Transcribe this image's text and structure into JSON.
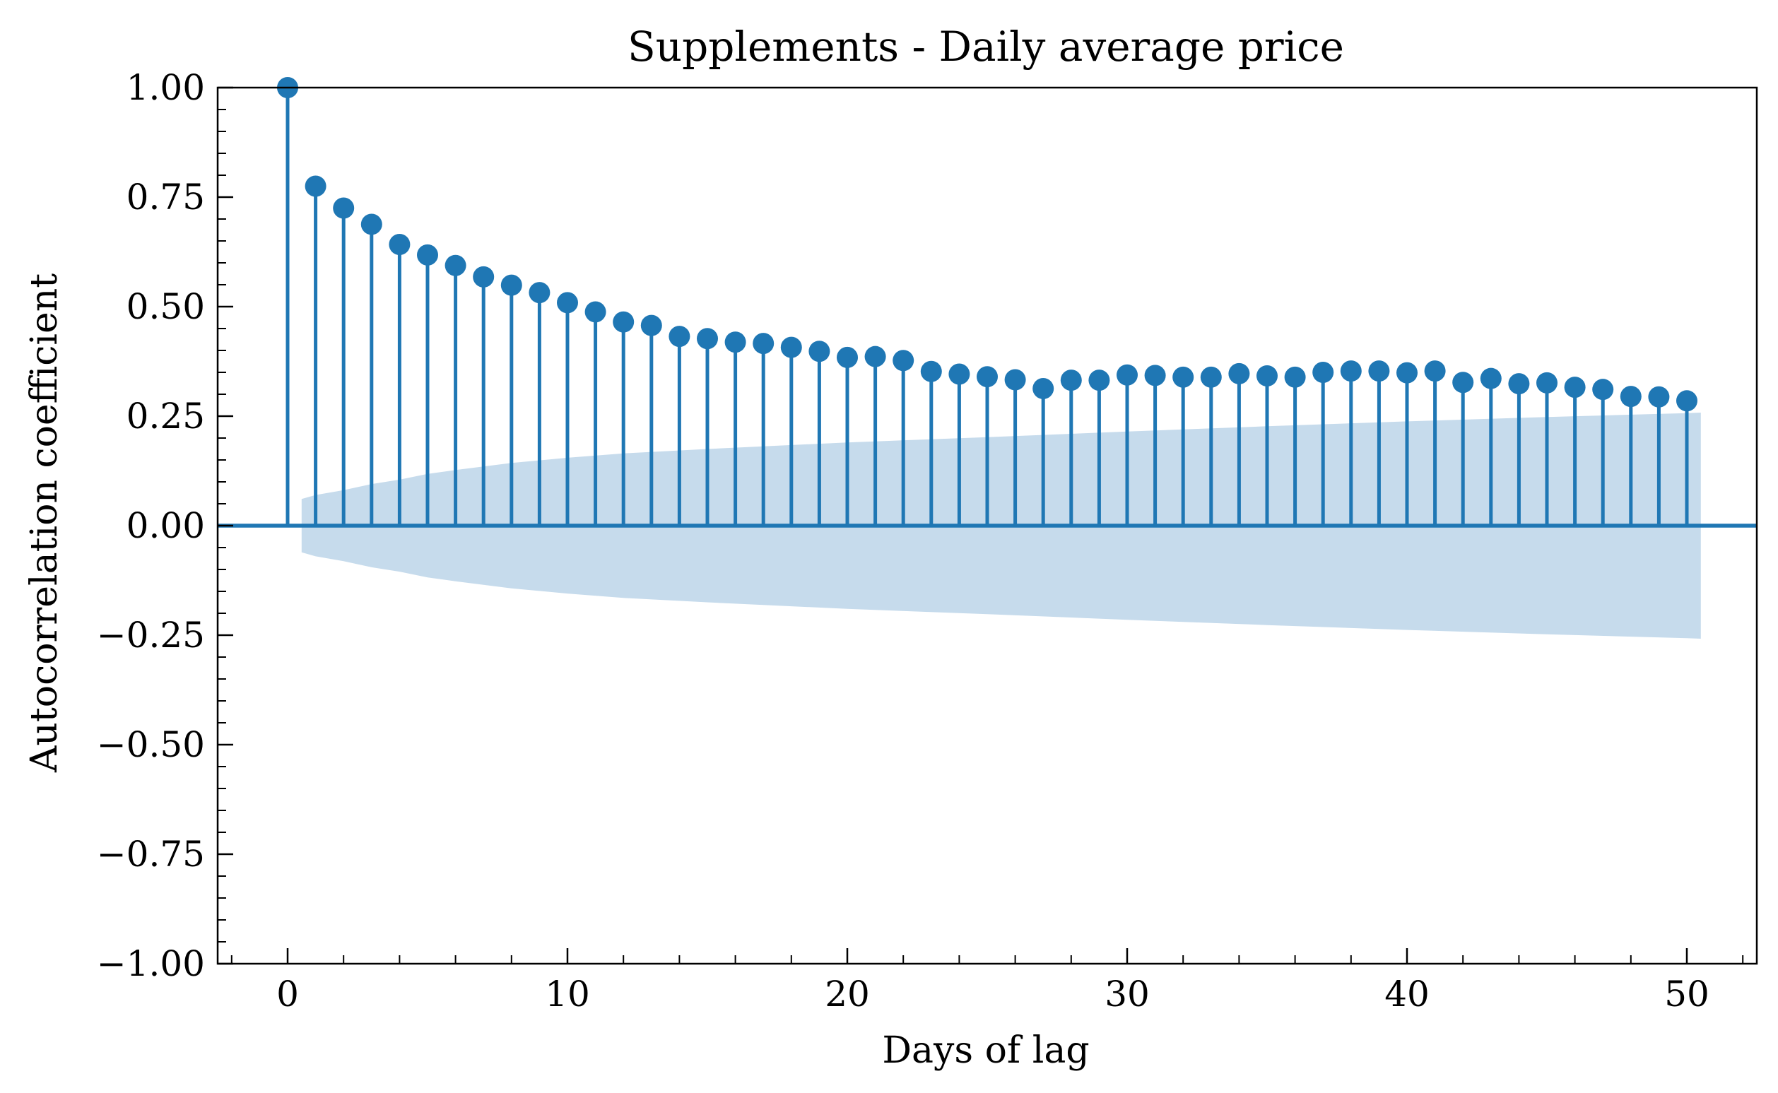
{
  "chart_data": {
    "type": "stem",
    "title": "Supplements - Daily average price",
    "xlabel": "Days of lag",
    "ylabel": "Autocorrelation coefficient",
    "xlim": [
      -2.5,
      52.5
    ],
    "ylim": [
      -1.0,
      1.0
    ],
    "x_ticks": [
      0,
      10,
      20,
      30,
      40,
      50
    ],
    "x_tick_labels": [
      "0",
      "10",
      "20",
      "30",
      "40",
      "50"
    ],
    "y_ticks": [
      -1.0,
      -0.75,
      -0.5,
      -0.25,
      0.0,
      0.25,
      0.5,
      0.75,
      1.0
    ],
    "y_tick_labels": [
      "−1.00",
      "−0.75",
      "−0.50",
      "−0.25",
      "0.00",
      "0.25",
      "0.50",
      "0.75",
      "1.00"
    ],
    "lags": [
      0,
      1,
      2,
      3,
      4,
      5,
      6,
      7,
      8,
      9,
      10,
      11,
      12,
      13,
      14,
      15,
      16,
      17,
      18,
      19,
      20,
      21,
      22,
      23,
      24,
      25,
      26,
      27,
      28,
      29,
      30,
      31,
      32,
      33,
      34,
      35,
      36,
      37,
      38,
      39,
      40,
      41,
      42,
      43,
      44,
      45,
      46,
      47,
      48,
      49,
      50
    ],
    "acf": [
      1.0,
      0.775,
      0.725,
      0.688,
      0.642,
      0.618,
      0.594,
      0.568,
      0.549,
      0.532,
      0.509,
      0.488,
      0.465,
      0.457,
      0.432,
      0.427,
      0.419,
      0.416,
      0.407,
      0.398,
      0.384,
      0.386,
      0.377,
      0.352,
      0.346,
      0.34,
      0.333,
      0.313,
      0.332,
      0.332,
      0.344,
      0.343,
      0.339,
      0.339,
      0.347,
      0.342,
      0.339,
      0.35,
      0.353,
      0.353,
      0.349,
      0.353,
      0.327,
      0.336,
      0.324,
      0.326,
      0.316,
      0.311,
      0.295,
      0.294,
      0.285
    ],
    "confidence_band": {
      "x": [
        0.5,
        1,
        2,
        3,
        4,
        5,
        6,
        8,
        10,
        12,
        15,
        20,
        25,
        30,
        35,
        40,
        45,
        50,
        50.5
      ],
      "upper": [
        0.061,
        0.07,
        0.081,
        0.095,
        0.105,
        0.118,
        0.127,
        0.143,
        0.155,
        0.165,
        0.175,
        0.19,
        0.202,
        0.215,
        0.227,
        0.238,
        0.248,
        0.257,
        0.258
      ]
    },
    "colors": {
      "stem": "#1f77b4",
      "band": "#c6dbec",
      "axes": "#000000"
    },
    "grid": false
  }
}
